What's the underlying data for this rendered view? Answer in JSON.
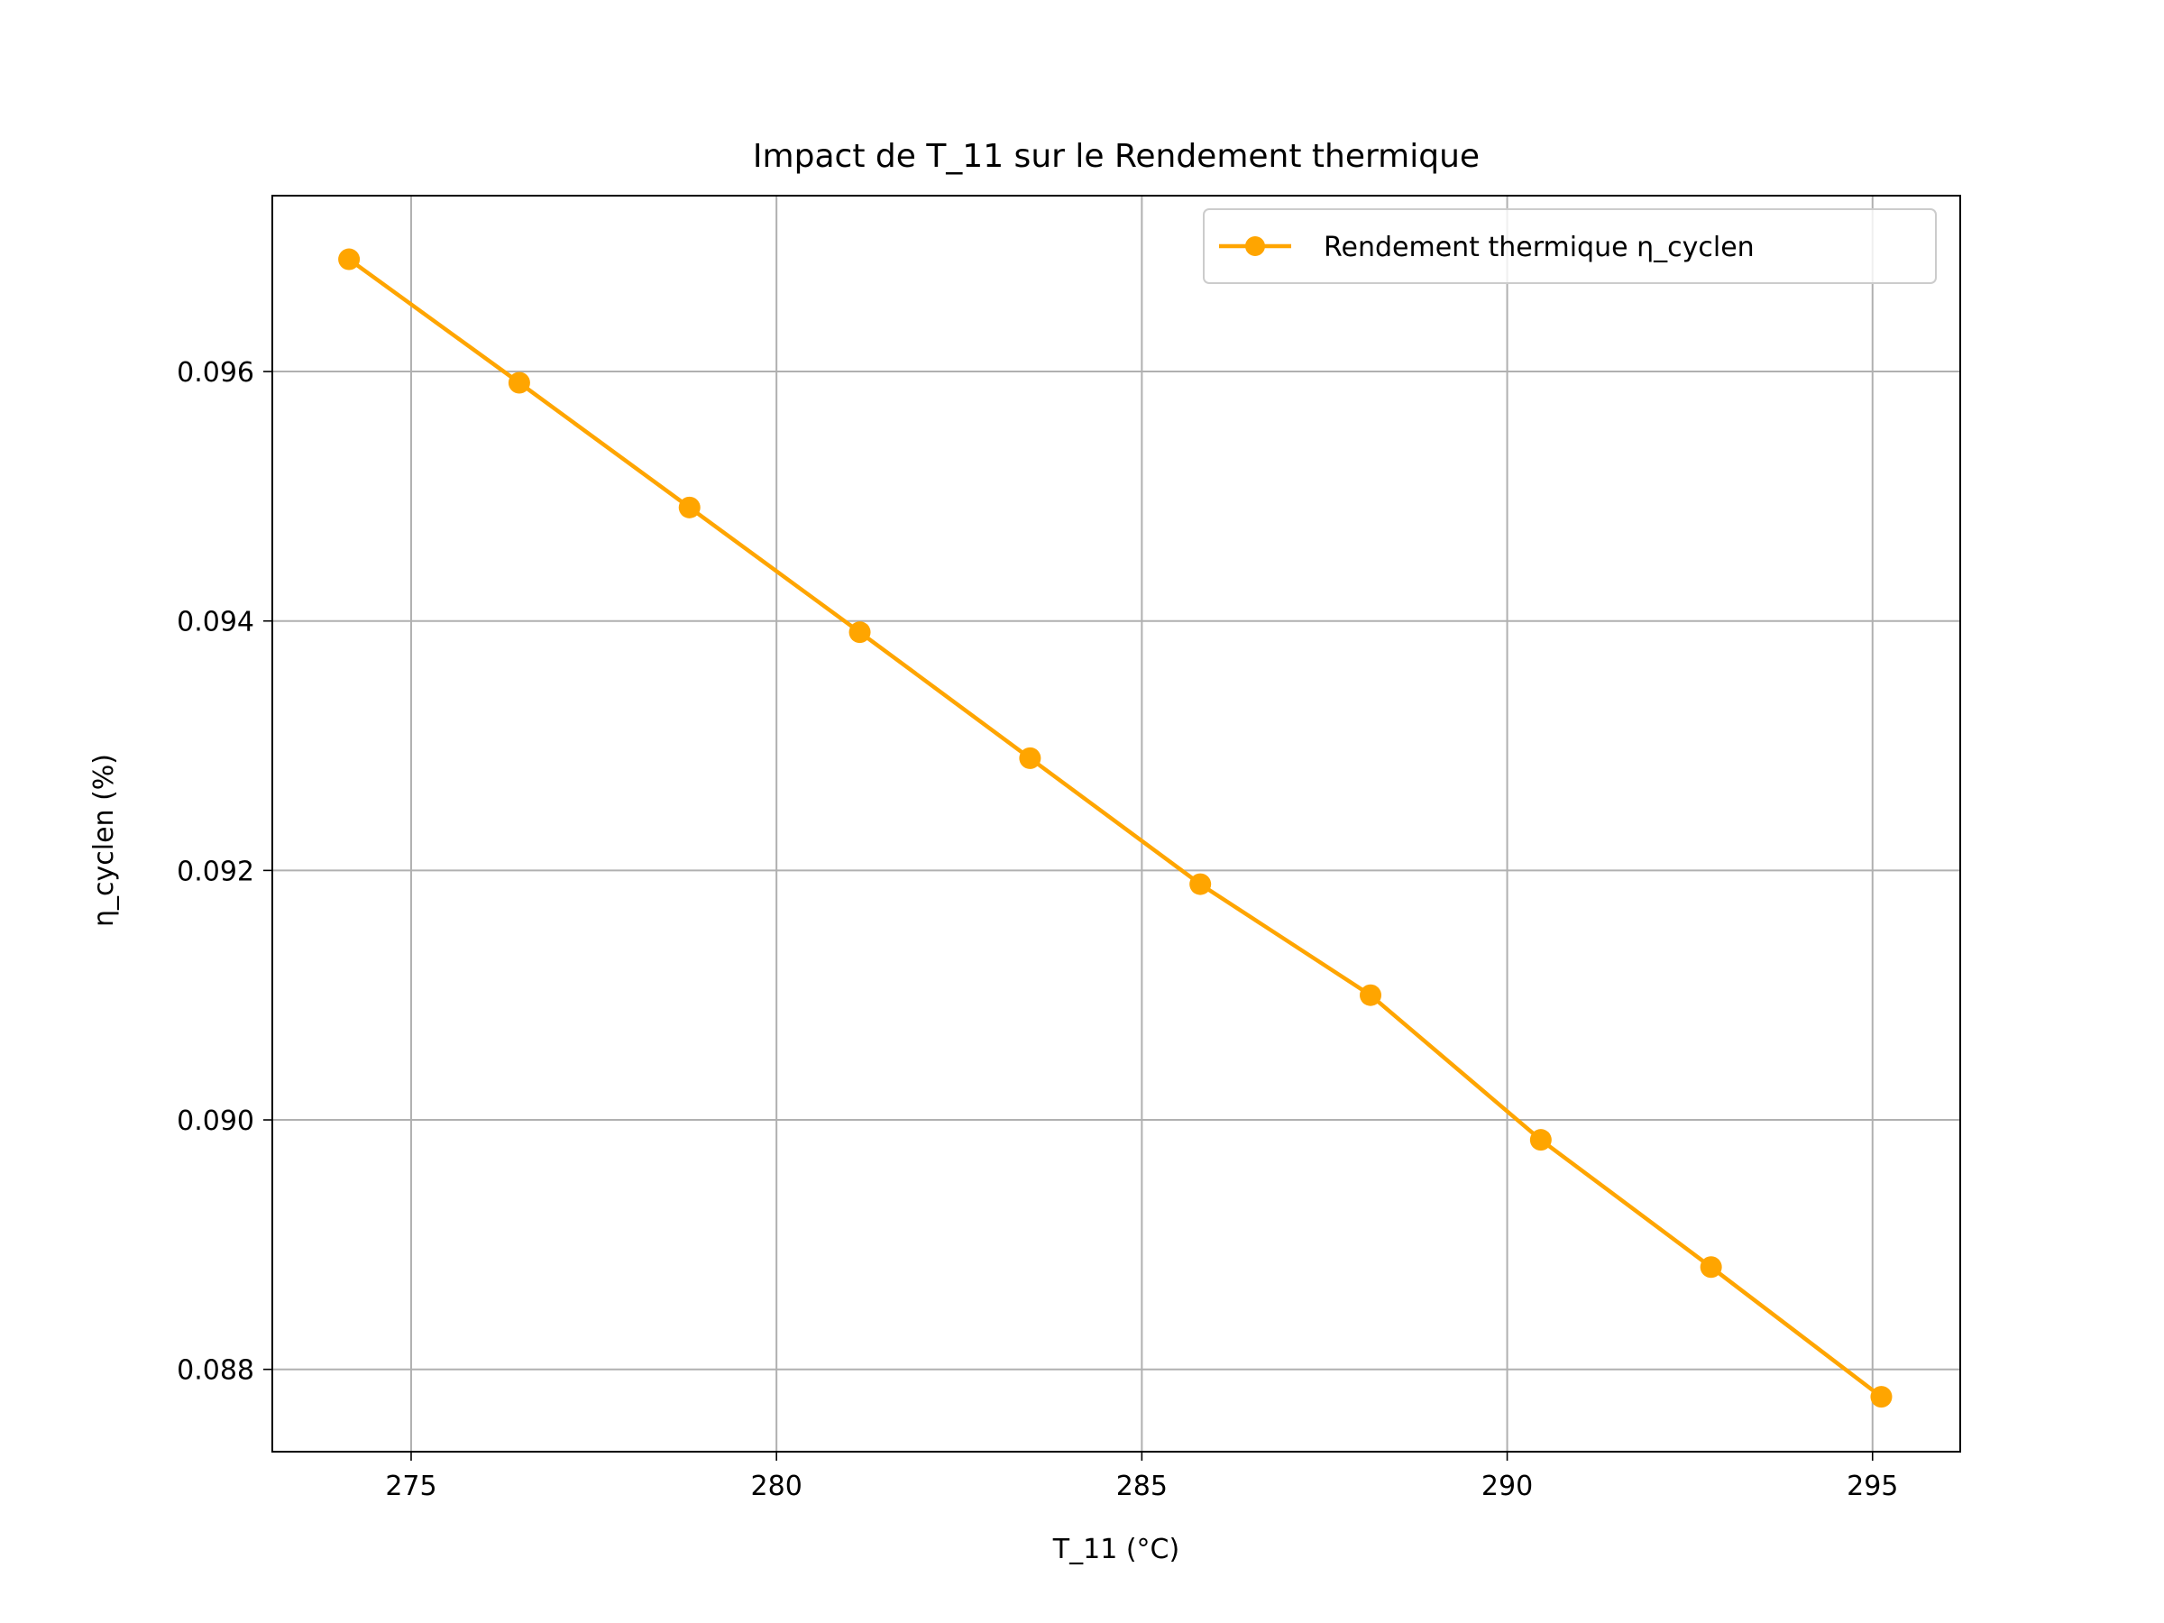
{
  "chart_data": {
    "type": "line",
    "title": "Impact de T_11 sur le Rendement thermique",
    "xlabel": "T_11 (°C)",
    "ylabel": "η_cyclen (%)",
    "xlim": [
      273.1,
      296.2
    ],
    "ylim": [
      0.08734,
      0.09741
    ],
    "xticks": [
      275,
      280,
      285,
      290,
      295
    ],
    "xtick_labels": [
      "275",
      "280",
      "285",
      "290",
      "295"
    ],
    "yticks": [
      0.088,
      0.09,
      0.092,
      0.094,
      0.096
    ],
    "ytick_labels": [
      "0.088",
      "0.090",
      "0.092",
      "0.094",
      "0.096"
    ],
    "grid": true,
    "legend_position": "top-right",
    "series": [
      {
        "name": "Rendement thermique η_cyclen",
        "color": "#FFA500",
        "marker": "circle",
        "x": [
          274.15,
          276.48,
          278.81,
          281.14,
          283.47,
          285.8,
          288.13,
          290.46,
          292.79,
          295.12
        ],
        "y": [
          0.0969,
          0.09591,
          0.09491,
          0.09391,
          0.0929,
          0.09189,
          0.091,
          0.08984,
          0.08882,
          0.08778
        ]
      }
    ]
  }
}
